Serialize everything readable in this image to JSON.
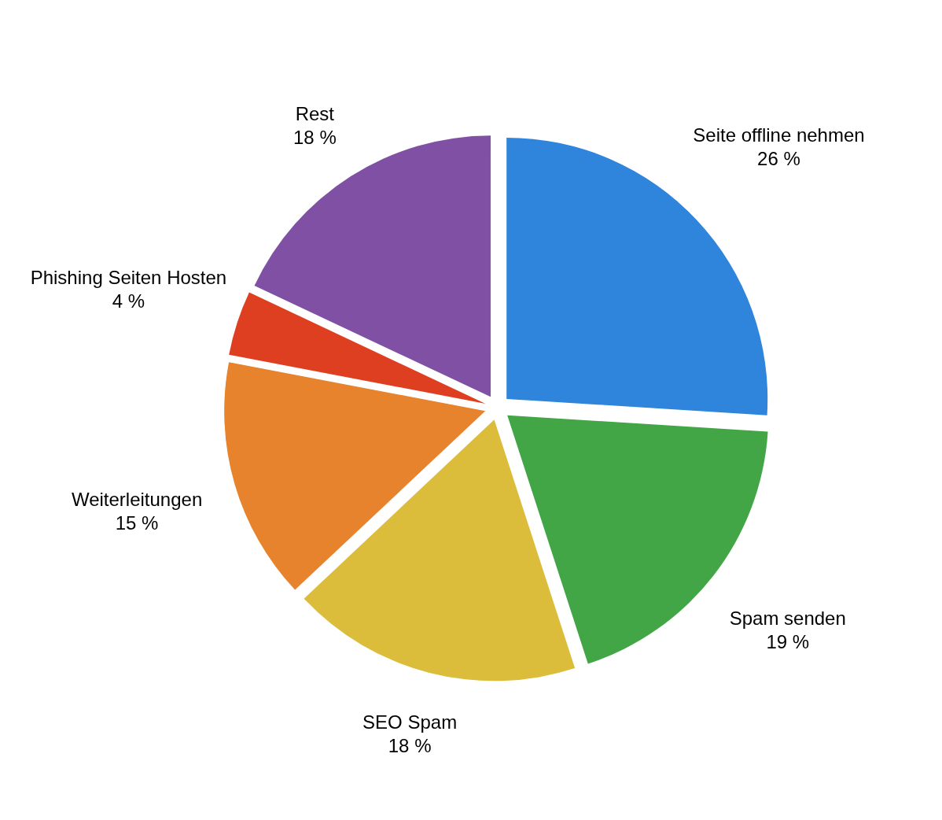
{
  "chart_data": {
    "type": "pie",
    "categories": [
      "Seite offline nehmen",
      "Spam senden",
      "SEO Spam",
      "Weiterleitungen",
      "Phishing Seiten Hosten",
      "Rest"
    ],
    "values": [
      26,
      19,
      18,
      15,
      4,
      18
    ],
    "value_labels": [
      "26 %",
      "19 %",
      "18 %",
      "15 %",
      "4 %",
      "18 %"
    ],
    "colors": [
      "#2f84dc",
      "#42a646",
      "#dbbd3b",
      "#e6832c",
      "#df3f21",
      "#7f50a3"
    ],
    "legend": false
  }
}
